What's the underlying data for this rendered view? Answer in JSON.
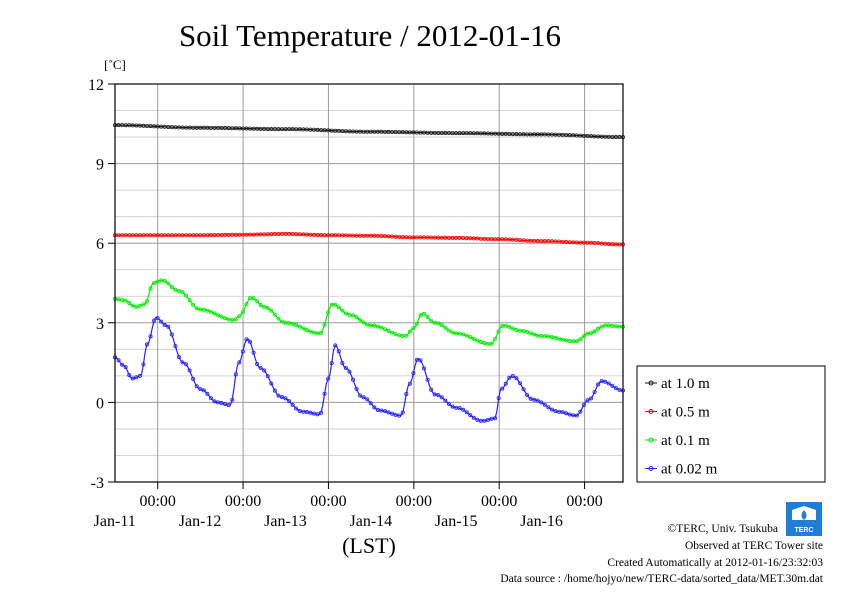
{
  "chart_data": {
    "type": "line",
    "title": "Soil Temperature / 2012-01-16",
    "ylabel": "[˚C]",
    "xlabel": "(LST)",
    "ylim": [
      -3,
      12
    ],
    "yticks": [
      -3,
      0,
      3,
      6,
      9,
      12
    ],
    "xlim": [
      0,
      5.95
    ],
    "x_units": "days since 2012-01-10 12:00 LST",
    "x_ticks": [
      {
        "x": 0.5,
        "time": "00:00",
        "date": "Jan-11"
      },
      {
        "x": 1.5,
        "time": "00:00",
        "date": "Jan-12"
      },
      {
        "x": 2.5,
        "time": "00:00",
        "date": "Jan-13"
      },
      {
        "x": 3.5,
        "time": "00:00",
        "date": "Jan-14"
      },
      {
        "x": 4.5,
        "time": "00:00",
        "date": "Jan-15"
      },
      {
        "x": 5.5,
        "time": "00:00",
        "date": "Jan-16"
      }
    ],
    "grid": true,
    "legend_position": "right",
    "series": [
      {
        "name": "at 1.0 m",
        "color": "#1a1a1a",
        "x": [
          0,
          1,
          2,
          3,
          4,
          5,
          5.95
        ],
        "y": [
          10.45,
          10.35,
          10.3,
          10.2,
          10.15,
          10.1,
          10.0
        ]
      },
      {
        "name": "at 0.5 m",
        "color": "#ff0000",
        "x": [
          0,
          0.5,
          1,
          1.5,
          2,
          2.5,
          3,
          3.5,
          4,
          4.5,
          5,
          5.5,
          5.95
        ],
        "y": [
          6.3,
          6.3,
          6.3,
          6.32,
          6.35,
          6.3,
          6.28,
          6.22,
          6.2,
          6.15,
          6.08,
          6.02,
          5.95
        ]
      },
      {
        "name": "at 0.1 m",
        "color": "#00ee00",
        "x": [
          0,
          0.1,
          0.25,
          0.35,
          0.45,
          0.55,
          0.75,
          1.0,
          1.4,
          1.45,
          1.6,
          1.75,
          2.0,
          2.4,
          2.55,
          2.75,
          3.0,
          3.4,
          3.5,
          3.6,
          3.75,
          4.0,
          4.4,
          4.55,
          4.75,
          5.0,
          5.4,
          5.55,
          5.75,
          5.95
        ],
        "y": [
          3.9,
          3.85,
          3.6,
          3.7,
          4.5,
          4.6,
          4.2,
          3.5,
          3.1,
          3.25,
          3.95,
          3.6,
          3.0,
          2.6,
          3.7,
          3.3,
          2.9,
          2.5,
          2.8,
          3.35,
          3.0,
          2.6,
          2.2,
          2.9,
          2.7,
          2.5,
          2.3,
          2.6,
          2.9,
          2.85
        ]
      },
      {
        "name": "at 0.02 m",
        "color": "#2222ff",
        "x": [
          0,
          0.1,
          0.2,
          0.3,
          0.38,
          0.48,
          0.6,
          0.8,
          1.0,
          1.2,
          1.35,
          1.45,
          1.55,
          1.7,
          1.95,
          2.2,
          2.4,
          2.5,
          2.58,
          2.7,
          2.9,
          3.1,
          3.35,
          3.45,
          3.55,
          3.75,
          4.0,
          4.3,
          4.45,
          4.52,
          4.65,
          4.9,
          5.2,
          5.4,
          5.55,
          5.7,
          5.95
        ],
        "y": [
          1.7,
          1.4,
          0.9,
          1.0,
          2.2,
          3.2,
          2.9,
          1.5,
          0.5,
          0.0,
          -0.1,
          1.5,
          2.4,
          1.3,
          0.2,
          -0.35,
          -0.45,
          0.9,
          2.15,
          1.3,
          0.2,
          -0.3,
          -0.5,
          0.7,
          1.65,
          0.3,
          -0.2,
          -0.7,
          -0.6,
          0.5,
          1.0,
          0.1,
          -0.35,
          -0.5,
          0.1,
          0.8,
          0.45
        ]
      }
    ]
  },
  "credits": {
    "copyright": "©TERC, Univ. Tsukuba",
    "observed": "Observed at TERC Tower site",
    "created": "Created Automatically at 2012-01-16/23:32:03",
    "source": "Data source : /home/hojyo/new/TERC-data/sorted_data/MET.30m.dat"
  },
  "logo": {
    "text": "TERC"
  }
}
